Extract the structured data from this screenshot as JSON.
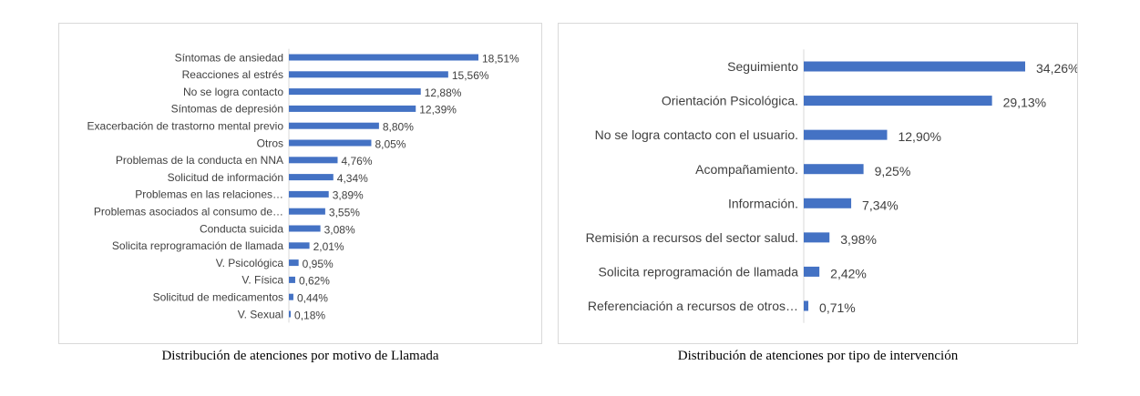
{
  "chart_data": [
    {
      "type": "bar",
      "orientation": "horizontal",
      "categories": [
        "Síntomas de ansiedad",
        "Reacciones al estrés",
        "No se logra contacto",
        "Síntomas de depresión",
        "Exacerbación de trastorno mental previo",
        "Otros",
        "Problemas de la conducta en NNA",
        "Solicitud de información",
        "Problemas en las relaciones…",
        "Problemas asociados al consumo de…",
        "Conducta suicida",
        "Solicita reprogramación de llamada",
        "V. Psicológica",
        "V. Física",
        "Solicitud de medicamentos",
        "V. Sexual"
      ],
      "values": [
        18.51,
        15.56,
        12.88,
        12.39,
        8.8,
        8.05,
        4.76,
        4.34,
        3.89,
        3.55,
        3.08,
        2.01,
        0.95,
        0.62,
        0.44,
        0.18
      ],
      "value_labels": [
        "18,51%",
        "15,56%",
        "12,88%",
        "12,39%",
        "8,80%",
        "8,05%",
        "4,76%",
        "4,34%",
        "3,89%",
        "3,55%",
        "3,08%",
        "2,01%",
        "0,95%",
        "0,62%",
        "0,44%",
        "0,18%"
      ],
      "xlim": [
        0,
        18.51
      ],
      "grid": false,
      "color": "#4472c4",
      "caption": "Distribución de atenciones por motivo de Llamada"
    },
    {
      "type": "bar",
      "orientation": "horizontal",
      "categories": [
        "Seguimiento",
        "Orientación Psicológica.",
        "No se logra contacto con el usuario.",
        "Acompañamiento.",
        "Información.",
        "Remisión a recursos del sector salud.",
        "Solicita reprogramación de llamada",
        "Referenciación a recursos de otros…"
      ],
      "values": [
        34.26,
        29.13,
        12.9,
        9.25,
        7.34,
        3.98,
        2.42,
        0.71
      ],
      "value_labels": [
        "34,26%",
        "29,13%",
        "12,90%",
        "9,25%",
        "7,34%",
        "3,98%",
        "2,42%",
        "0,71%"
      ],
      "xlim": [
        0,
        34.26
      ],
      "grid": false,
      "color": "#4472c4",
      "caption": "Distribución de atenciones por tipo de intervención"
    }
  ]
}
